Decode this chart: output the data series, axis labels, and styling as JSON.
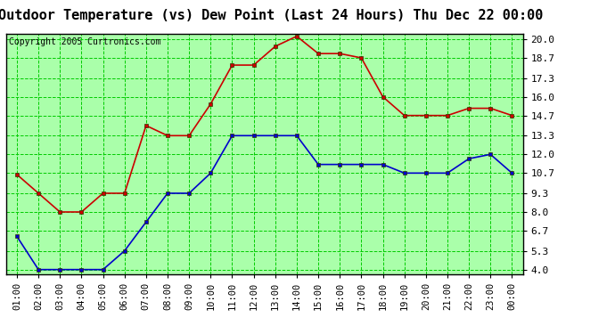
{
  "title": "Outdoor Temperature (vs) Dew Point (Last 24 Hours) Thu Dec 22 00:00",
  "copyright": "Copyright 2005 Curtronics.com",
  "x_labels": [
    "01:00",
    "02:00",
    "03:00",
    "04:00",
    "05:00",
    "06:00",
    "07:00",
    "08:00",
    "09:00",
    "10:00",
    "11:00",
    "12:00",
    "13:00",
    "14:00",
    "15:00",
    "16:00",
    "17:00",
    "18:00",
    "19:00",
    "20:00",
    "21:00",
    "22:00",
    "23:00",
    "00:00"
  ],
  "temp_red": [
    10.6,
    9.3,
    8.0,
    8.0,
    9.3,
    9.3,
    14.0,
    13.3,
    13.3,
    15.5,
    18.2,
    18.2,
    19.5,
    20.2,
    19.0,
    19.0,
    18.7,
    16.0,
    14.7,
    14.7,
    14.7,
    15.2,
    15.2,
    14.7
  ],
  "temp_blue": [
    6.3,
    4.0,
    4.0,
    4.0,
    4.0,
    5.3,
    7.3,
    9.3,
    9.3,
    10.7,
    13.3,
    13.3,
    13.3,
    13.3,
    11.3,
    11.3,
    11.3,
    11.3,
    10.7,
    10.7,
    10.7,
    11.7,
    12.0,
    10.7
  ],
  "y_ticks": [
    4.0,
    5.3,
    6.7,
    8.0,
    9.3,
    10.7,
    12.0,
    13.3,
    14.7,
    16.0,
    17.3,
    18.7,
    20.0
  ],
  "ylim": [
    3.7,
    20.4
  ],
  "plot_bg": "#aaffaa",
  "grid_color": "#00cc00",
  "title_fontsize": 11,
  "copyright_fontsize": 7,
  "tick_fontsize": 7.5,
  "ytick_fontsize": 8,
  "red_color": "#cc0000",
  "blue_color": "#0000cc",
  "marker_edge_color": "#333300",
  "border_color": "#000000"
}
